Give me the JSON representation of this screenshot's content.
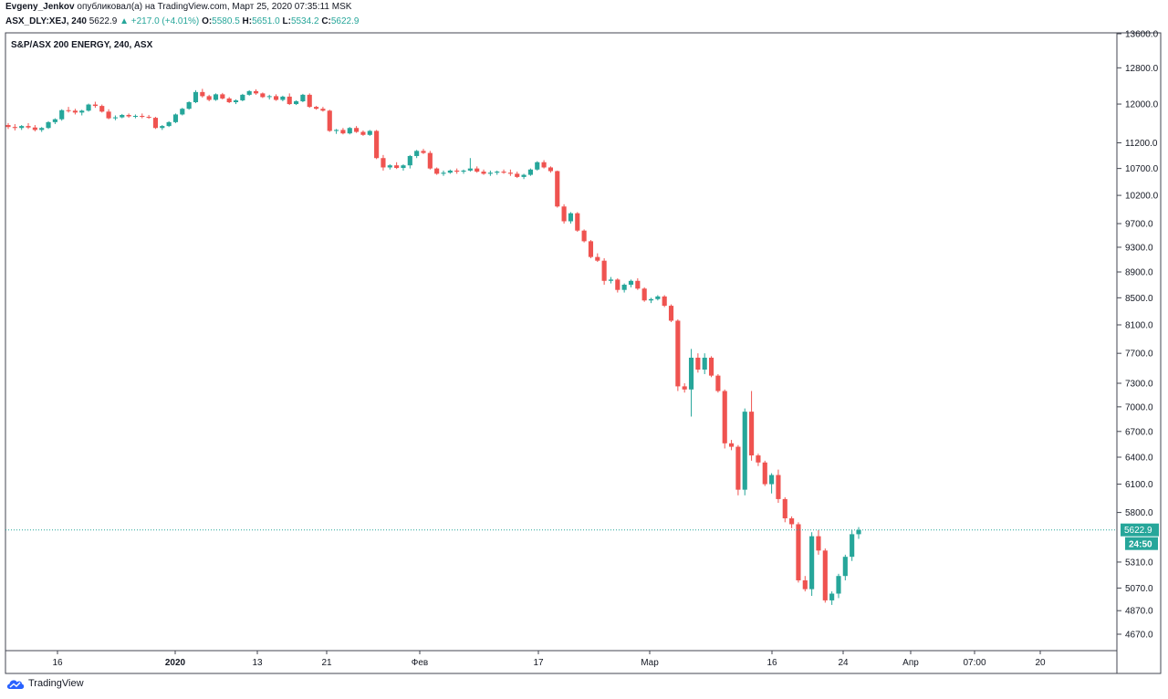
{
  "header": {
    "author": "Evgeny_Jenkov",
    "published_text": "опубликовал(а) на TradingView.com, Март 25, 2020 07:35:11 MSK",
    "symbol": "ASX_DLY:XEJ, 240",
    "last": "5622.9",
    "change": "▲ +217.0 (+4.01%)",
    "o_label": "O:",
    "o_val": "5580.5",
    "h_label": "H:",
    "h_val": "5651.0",
    "l_label": "L:",
    "l_val": "5534.2",
    "c_label": "C:",
    "c_val": "5622.9"
  },
  "footer": {
    "brand": "TradingView",
    "logo_icon": "tradingview-cloud-icon"
  },
  "colors": {
    "up": "#26a69a",
    "down": "#ef5350",
    "price_line": "#26a69a"
  },
  "chart_data": {
    "type": "candlestick",
    "title": "S&P/ASX 200 ENERGY, 240, ASX",
    "y_ticks": [
      13600,
      12800,
      12000,
      11200,
      10700,
      10200,
      9700,
      9300,
      8900,
      8500,
      8100,
      7700,
      7300,
      7000,
      6700,
      6400,
      6100,
      5800,
      5310,
      5070,
      4870,
      4670
    ],
    "y_scale": "log",
    "x_ticks": [
      "16",
      "2020",
      "13",
      "21",
      "Фев",
      "17",
      "Мар",
      "16",
      "24",
      "Апр",
      "07:00",
      "20"
    ],
    "last_price": "5622.9",
    "countdown": "24:50",
    "candles": [
      [
        11560,
        11600,
        11480,
        11520
      ],
      [
        11520,
        11580,
        11450,
        11500
      ],
      [
        11500,
        11560,
        11460,
        11540
      ],
      [
        11540,
        11600,
        11480,
        11510
      ],
      [
        11510,
        11560,
        11430,
        11460
      ],
      [
        11460,
        11520,
        11420,
        11500
      ],
      [
        11500,
        11640,
        11480,
        11620
      ],
      [
        11620,
        11700,
        11580,
        11680
      ],
      [
        11680,
        11890,
        11650,
        11870
      ],
      [
        11870,
        11940,
        11820,
        11860
      ],
      [
        11860,
        11900,
        11780,
        11820
      ],
      [
        11820,
        11880,
        11760,
        11860
      ],
      [
        11860,
        12010,
        11840,
        11990
      ],
      [
        11990,
        12050,
        11920,
        11960
      ],
      [
        11960,
        11990,
        11820,
        11840
      ],
      [
        11840,
        11890,
        11680,
        11700
      ],
      [
        11700,
        11760,
        11660,
        11720
      ],
      [
        11720,
        11790,
        11700,
        11770
      ],
      [
        11770,
        11800,
        11710,
        11740
      ],
      [
        11740,
        11780,
        11700,
        11750
      ],
      [
        11750,
        11800,
        11700,
        11730
      ],
      [
        11730,
        11770,
        11690,
        11710
      ],
      [
        11710,
        11730,
        11480,
        11500
      ],
      [
        11500,
        11560,
        11460,
        11540
      ],
      [
        11540,
        11640,
        11520,
        11620
      ],
      [
        11620,
        11800,
        11600,
        11780
      ],
      [
        11780,
        11920,
        11760,
        11900
      ],
      [
        11900,
        12060,
        11880,
        12040
      ],
      [
        12040,
        12300,
        12020,
        12260
      ],
      [
        12260,
        12330,
        12140,
        12170
      ],
      [
        12170,
        12200,
        12060,
        12090
      ],
      [
        12090,
        12230,
        12070,
        12210
      ],
      [
        12210,
        12240,
        12100,
        12120
      ],
      [
        12120,
        12150,
        12020,
        12040
      ],
      [
        12040,
        12100,
        12000,
        12080
      ],
      [
        12080,
        12220,
        12060,
        12200
      ],
      [
        12200,
        12300,
        12180,
        12280
      ],
      [
        12280,
        12320,
        12200,
        12230
      ],
      [
        12230,
        12250,
        12130,
        12150
      ],
      [
        12150,
        12200,
        12100,
        12170
      ],
      [
        12170,
        12210,
        12070,
        12090
      ],
      [
        12090,
        12180,
        12060,
        12160
      ],
      [
        12160,
        12230,
        11980,
        12000
      ],
      [
        12000,
        12080,
        11980,
        12060
      ],
      [
        12060,
        12220,
        12040,
        12200
      ],
      [
        12200,
        12230,
        11920,
        11940
      ],
      [
        11940,
        11960,
        11880,
        11900
      ],
      [
        11900,
        11940,
        11840,
        11860
      ],
      [
        11860,
        11880,
        11420,
        11440
      ],
      [
        11440,
        11480,
        11380,
        11460
      ],
      [
        11460,
        11500,
        11370,
        11390
      ],
      [
        11390,
        11520,
        11370,
        11500
      ],
      [
        11500,
        11540,
        11400,
        11420
      ],
      [
        11420,
        11450,
        11340,
        11360
      ],
      [
        11360,
        11460,
        11340,
        11440
      ],
      [
        11440,
        11460,
        10880,
        10900
      ],
      [
        10900,
        10960,
        10660,
        10720
      ],
      [
        10720,
        10780,
        10680,
        10760
      ],
      [
        10760,
        10820,
        10690,
        10710
      ],
      [
        10710,
        10780,
        10660,
        10760
      ],
      [
        10760,
        10960,
        10700,
        10940
      ],
      [
        10940,
        11060,
        10900,
        11040
      ],
      [
        11040,
        11080,
        10980,
        11000
      ],
      [
        11000,
        11040,
        10680,
        10700
      ],
      [
        10700,
        10720,
        10580,
        10600
      ],
      [
        10600,
        10660,
        10560,
        10620
      ],
      [
        10620,
        10680,
        10600,
        10660
      ],
      [
        10660,
        10700,
        10600,
        10640
      ],
      [
        10640,
        10680,
        10600,
        10660
      ],
      [
        10660,
        10900,
        10640,
        10700
      ],
      [
        10700,
        10740,
        10620,
        10640
      ],
      [
        10640,
        10680,
        10580,
        10600
      ],
      [
        10600,
        10660,
        10560,
        10620
      ],
      [
        10620,
        10660,
        10580,
        10640
      ],
      [
        10640,
        10680,
        10600,
        10620
      ],
      [
        10620,
        10680,
        10560,
        10600
      ],
      [
        10600,
        10640,
        10520,
        10540
      ],
      [
        10540,
        10600,
        10500,
        10580
      ],
      [
        10580,
        10700,
        10560,
        10680
      ],
      [
        10680,
        10840,
        10660,
        10820
      ],
      [
        10820,
        10860,
        10700,
        10720
      ],
      [
        10720,
        10740,
        10620,
        10650
      ],
      [
        10650,
        10660,
        9980,
        10000
      ],
      [
        10000,
        10040,
        9700,
        9740
      ],
      [
        9740,
        9900,
        9700,
        9880
      ],
      [
        9880,
        9900,
        9560,
        9580
      ],
      [
        9580,
        9600,
        9380,
        9400
      ],
      [
        9400,
        9420,
        9120,
        9140
      ],
      [
        9140,
        9200,
        9060,
        9080
      ],
      [
        9080,
        9120,
        8700,
        8760
      ],
      [
        8760,
        8820,
        8720,
        8780
      ],
      [
        8780,
        8800,
        8580,
        8620
      ],
      [
        8620,
        8720,
        8580,
        8700
      ],
      [
        8700,
        8780,
        8660,
        8760
      ],
      [
        8760,
        8800,
        8620,
        8640
      ],
      [
        8640,
        8660,
        8440,
        8460
      ],
      [
        8460,
        8500,
        8420,
        8480
      ],
      [
        8480,
        8540,
        8460,
        8520
      ],
      [
        8520,
        8540,
        8360,
        8380
      ],
      [
        8380,
        8400,
        8140,
        8160
      ],
      [
        8160,
        8180,
        7200,
        7260
      ],
      [
        7260,
        7300,
        7180,
        7220
      ],
      [
        7220,
        7760,
        6880,
        7640
      ],
      [
        7640,
        7700,
        7440,
        7480
      ],
      [
        7480,
        7700,
        7420,
        7640
      ],
      [
        7640,
        7660,
        7380,
        7400
      ],
      [
        7400,
        7420,
        7180,
        7200
      ],
      [
        7200,
        7220,
        6500,
        6560
      ],
      [
        6560,
        6600,
        6480,
        6520
      ],
      [
        6520,
        6540,
        5980,
        6040
      ],
      [
        6040,
        6980,
        5980,
        6940
      ],
      [
        6940,
        7200,
        6360,
        6420
      ],
      [
        6420,
        6440,
        6300,
        6340
      ],
      [
        6340,
        6360,
        6080,
        6100
      ],
      [
        6100,
        6220,
        6000,
        6200
      ],
      [
        6200,
        6260,
        5900,
        5940
      ],
      [
        5940,
        5960,
        5700,
        5740
      ],
      [
        5740,
        5760,
        5640,
        5680
      ],
      [
        5680,
        5700,
        5120,
        5140
      ],
      [
        5140,
        5180,
        5040,
        5060
      ],
      [
        5060,
        5600,
        5000,
        5560
      ],
      [
        5560,
        5620,
        5380,
        5420
      ],
      [
        5420,
        5440,
        4940,
        4960
      ],
      [
        4960,
        5040,
        4920,
        5020
      ],
      [
        5020,
        5200,
        4980,
        5180
      ],
      [
        5180,
        5380,
        5140,
        5360
      ],
      [
        5360,
        5620,
        5320,
        5580
      ],
      [
        5580,
        5651,
        5534.2,
        5622.9
      ]
    ]
  }
}
